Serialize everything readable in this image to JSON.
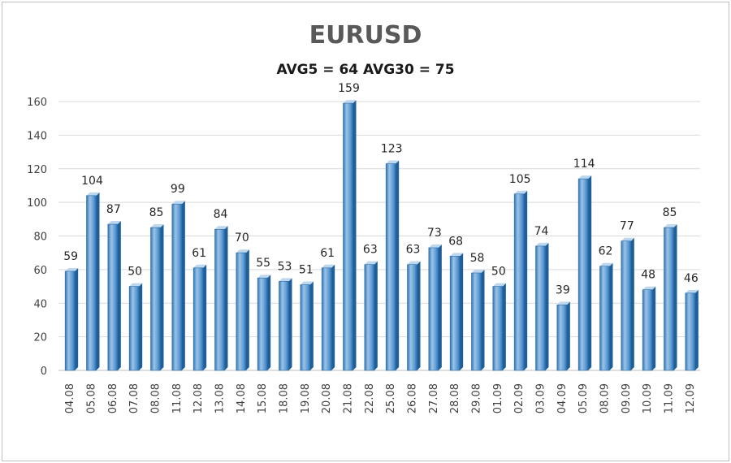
{
  "chart_data": {
    "type": "bar",
    "title": "EURUSD",
    "subtitle": "AVG5 = 64 AVG30 = 75",
    "xlabel": "",
    "ylabel": "",
    "ylim": [
      0,
      160
    ],
    "yticks": [
      0,
      20,
      40,
      60,
      80,
      100,
      120,
      140,
      160
    ],
    "grid": true,
    "legend": "none",
    "bar_color": "#5b9bd5",
    "categories": [
      "04.08",
      "05.08",
      "06.08",
      "07.08",
      "08.08",
      "11.08",
      "12.08",
      "13.08",
      "14.08",
      "15.08",
      "18.08",
      "19.08",
      "20.08",
      "21.08",
      "22.08",
      "25.08",
      "26.08",
      "27.08",
      "28.08",
      "29.08",
      "01.09",
      "02.09",
      "03.09",
      "04.09",
      "05.09",
      "08.09",
      "09.09",
      "10.09",
      "11.09",
      "12.09"
    ],
    "values": [
      59,
      104,
      87,
      50,
      85,
      99,
      61,
      84,
      70,
      55,
      53,
      51,
      61,
      159,
      63,
      123,
      63,
      73,
      68,
      58,
      50,
      105,
      74,
      39,
      114,
      62,
      77,
      48,
      85,
      46
    ]
  }
}
